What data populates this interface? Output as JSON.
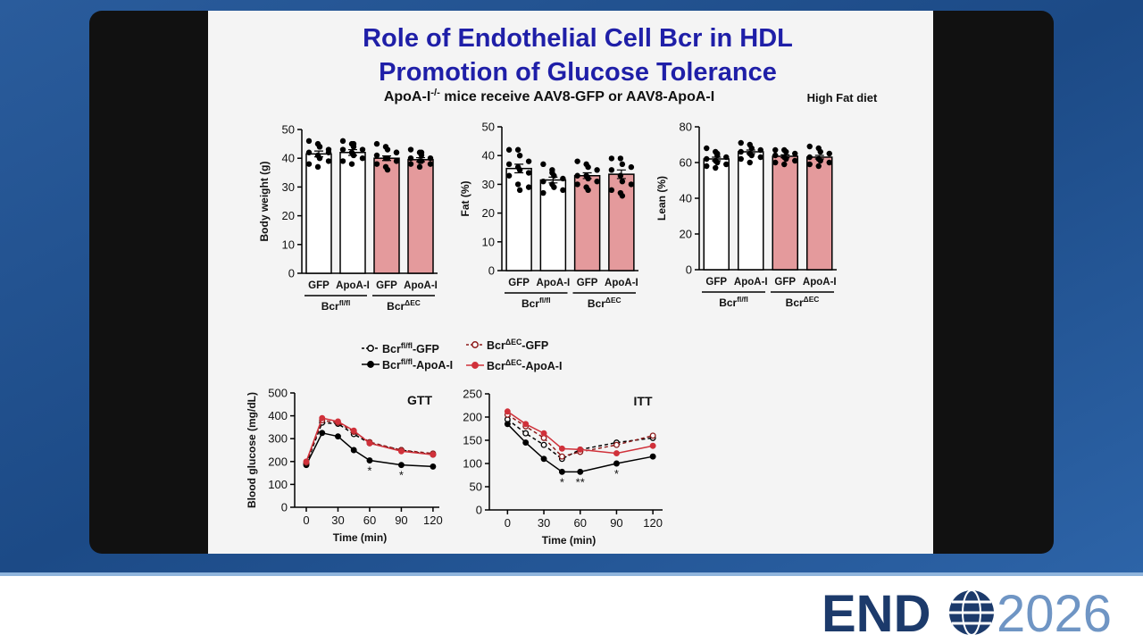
{
  "slide": {
    "title": [
      "Role of Endothelial Cell Bcr in HDL",
      "Promotion of Glucose Tolerance"
    ],
    "subtitle": {
      "text": "ApoA-I-/- mice receive AAV8-GFP or AAV8-ApoA-I",
      "sup": "-/-"
    },
    "note": "High Fat diet"
  },
  "logo": {
    "brand": "END",
    "year": "2026"
  },
  "chart_data": [
    {
      "type": "bar",
      "y_label": "Body weight (g)",
      "categories": [
        "GFP",
        "ApoA-I",
        "GFP",
        "ApoA-I"
      ],
      "groups": [
        {
          "label": "Bcrfl/fl",
          "sup": "fl/fl"
        },
        {
          "label": "BcrΔEC",
          "sup": "ΔEC"
        }
      ],
      "values": [
        41.5,
        42,
        40,
        39.5
      ],
      "errors": [
        1,
        1,
        0.8,
        0.7
      ],
      "colors": [
        "#ffffff",
        "#ffffff",
        "#e49a9c",
        "#e49a9c"
      ],
      "points": [
        [
          46,
          45,
          44,
          43,
          42,
          41,
          40,
          39,
          38,
          37,
          44,
          42
        ],
        [
          46,
          45,
          44,
          43,
          43,
          42,
          41,
          40,
          39,
          38,
          45
        ],
        [
          45,
          44,
          43,
          42,
          41,
          40,
          40,
          39,
          38,
          37,
          36,
          42
        ],
        [
          43,
          42,
          41,
          40,
          40,
          39,
          39,
          38,
          38,
          37,
          42
        ]
      ],
      "ylim": [
        0,
        50
      ],
      "yticks": [
        0,
        10,
        20,
        30,
        40,
        50
      ]
    },
    {
      "type": "bar",
      "y_label": "Fat (%)",
      "categories": [
        "GFP",
        "ApoA-I",
        "GFP",
        "ApoA-I"
      ],
      "groups": [
        {
          "label": "Bcrfl/fl",
          "sup": "fl/fl"
        },
        {
          "label": "BcrΔEC",
          "sup": "ΔEC"
        }
      ],
      "values": [
        35.5,
        31.5,
        33,
        33.5
      ],
      "errors": [
        1.5,
        1,
        1,
        1.5
      ],
      "colors": [
        "#ffffff",
        "#ffffff",
        "#e49a9c",
        "#e49a9c"
      ],
      "points": [
        [
          42,
          42,
          40,
          38,
          37,
          36,
          35,
          34,
          33,
          30,
          28,
          29
        ],
        [
          37,
          35,
          33,
          32,
          31,
          30,
          29,
          28,
          27,
          34
        ],
        [
          38,
          37,
          36,
          35,
          33,
          33,
          32,
          31,
          30,
          29,
          28
        ],
        [
          39,
          39,
          37,
          36,
          35,
          33,
          31,
          30,
          28,
          27,
          26
        ]
      ],
      "ylim": [
        0,
        50
      ],
      "yticks": [
        0,
        10,
        20,
        30,
        40,
        50
      ]
    },
    {
      "type": "bar",
      "y_label": "Lean (%)",
      "categories": [
        "GFP",
        "ApoA-I",
        "GFP",
        "ApoA-I"
      ],
      "groups": [
        {
          "label": "Bcrfl/fl",
          "sup": "fl/fl"
        },
        {
          "label": "BcrΔEC",
          "sup": "ΔEC"
        }
      ],
      "values": [
        62,
        66,
        63.5,
        63
      ],
      "errors": [
        1,
        1,
        0.8,
        1
      ],
      "colors": [
        "#ffffff",
        "#ffffff",
        "#e49a9c",
        "#e49a9c"
      ],
      "points": [
        [
          68,
          66,
          65,
          63,
          62,
          61,
          60,
          59,
          58,
          57,
          64
        ],
        [
          71,
          70,
          68,
          67,
          66,
          65,
          64,
          63,
          62,
          60
        ],
        [
          67,
          67,
          66,
          65,
          64,
          63,
          62,
          61,
          60,
          59
        ],
        [
          69,
          68,
          66,
          65,
          63,
          62,
          61,
          60,
          59,
          58
        ]
      ],
      "ylim": [
        0,
        80
      ],
      "yticks": [
        0,
        20,
        40,
        60,
        80
      ]
    },
    {
      "type": "line",
      "title": "GTT",
      "x_label": "Time (min)",
      "y_label": "Blood glucose (mg/dL)",
      "x": [
        0,
        15,
        30,
        45,
        60,
        90,
        120
      ],
      "xlim": [
        -11,
        126
      ],
      "xticks": [
        0,
        30,
        60,
        90,
        120
      ],
      "ylim": [
        0,
        500
      ],
      "yticks": [
        0,
        100,
        200,
        300,
        400,
        500
      ],
      "series": [
        {
          "name": "Bcrfl/fl-GFP",
          "sup": "fl/fl",
          "color": "#000000",
          "dashed": true,
          "open": true,
          "values": [
            190,
            370,
            365,
            320,
            280,
            250,
            230
          ]
        },
        {
          "name": "Bcrfl/fl-ApoA-I",
          "sup": "fl/fl",
          "color": "#000000",
          "dashed": false,
          "open": false,
          "values": [
            185,
            325,
            310,
            250,
            205,
            185,
            178
          ]
        },
        {
          "name": "BcrΔEC-GFP",
          "sup": "ΔEC",
          "color": "#8b1a1a",
          "dashed": true,
          "open": true,
          "values": [
            195,
            380,
            370,
            330,
            285,
            250,
            235
          ]
        },
        {
          "name": "BcrΔEC-ApoA-I",
          "sup": "ΔEC",
          "color": "#d0313a",
          "dashed": false,
          "open": false,
          "values": [
            200,
            390,
            375,
            335,
            280,
            245,
            230
          ]
        }
      ],
      "annotations": [
        {
          "x": 60,
          "text": "*"
        },
        {
          "x": 90,
          "text": "*"
        }
      ]
    },
    {
      "type": "line",
      "title": "ITT",
      "x_label": "Time (min)",
      "x": [
        0,
        15,
        30,
        45,
        60,
        90,
        120
      ],
      "xlim": [
        -15,
        128
      ],
      "xticks": [
        0,
        30,
        60,
        90,
        120
      ],
      "ylim": [
        0,
        250
      ],
      "yticks": [
        0,
        50,
        100,
        150,
        200,
        250
      ],
      "series": [
        {
          "color": "#000000",
          "dashed": true,
          "open": true,
          "values": [
            195,
            165,
            140,
            110,
            130,
            145,
            155
          ]
        },
        {
          "color": "#000000",
          "dashed": false,
          "open": false,
          "values": [
            185,
            145,
            110,
            82,
            82,
            100,
            115
          ]
        },
        {
          "color": "#8b1a1a",
          "dashed": true,
          "open": true,
          "values": [
            205,
            180,
            155,
            115,
            125,
            140,
            160
          ]
        },
        {
          "color": "#d0313a",
          "dashed": false,
          "open": false,
          "values": [
            212,
            185,
            165,
            132,
            130,
            122,
            138
          ]
        }
      ],
      "annotations": [
        {
          "x": 45,
          "text": "*"
        },
        {
          "x": 60,
          "text": "**"
        },
        {
          "x": 90,
          "text": "*"
        }
      ]
    }
  ]
}
